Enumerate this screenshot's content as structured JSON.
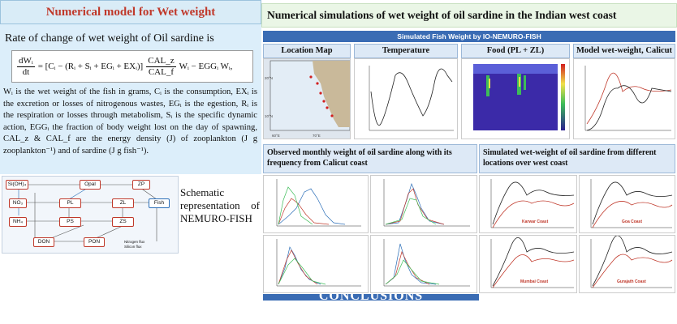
{
  "left": {
    "title": "Numerical model for Wet weight",
    "rate_text": "Rate of change of wet weight of Oil sardine is",
    "eq_lhs_num": "dWᵢ",
    "eq_lhs_den": "dt",
    "eq_mid": "= [Cᵢ − (Rᵢ + Sᵢ + EGᵢ + EXᵢ)]",
    "eq_frac_num": "CAL_z",
    "eq_frac_den": "CAL_f",
    "eq_tail": "Wᵢ − EGGᵢ Wᵢ,",
    "paragraph": "Wᵢ is the wet weight of the fish in grams, Cᵢ is the consumption, EXᵢ is the excretion or losses of nitrogenous wastes, EGᵢ is the egestion, Rᵢ is the respiration or losses through metabolism, Sᵢ is the specific dynamic action, EGGᵢ the fraction of body weight lost on the day of spawning, CAL_z & CAL_f are the energy density (J) of zooplankton (J g zooplankton⁻¹) and of sardine (J g fish⁻¹).",
    "schematic_text": "Schematic representation of NEMURO-FISH",
    "diagram_nodes": [
      "Si(OH)₄",
      "Opal",
      "ZP",
      "NO₃",
      "PL",
      "ZL",
      "Fish",
      "NH₄",
      "PS",
      "ZS",
      "DON",
      "PON"
    ],
    "diagram_legend": [
      "Nitrogen flux",
      "Silicon flux"
    ]
  },
  "right": {
    "title": "Numerical simulations of wet weight of oil sardine in the Indian west coast",
    "banner": "Simulated Fish Weight by IO-NEMURO-FISH",
    "panels": {
      "location": "Location Map",
      "temperature": "Temperature",
      "food": "Food (PL + ZL)",
      "model": "Model wet-weight, Calicut"
    },
    "map_labels": {
      "lat1": "20°N",
      "lat2": "10°N",
      "lon1": "60°E",
      "lon2": "70°E"
    },
    "observed_heading": "Observed monthly weight of oil sardine along with its frequency from Calicut coast",
    "simulated_heading": "Simulated wet-weight of oil sardine from different locations over west coast",
    "coasts": [
      "Karwar Coast",
      "Goa Coast",
      "Mumbai Coast",
      "Gurajath Coast"
    ],
    "conclusions": "CONCLUSIONS"
  },
  "colors": {
    "accent_red": "#c0392b",
    "banner_blue": "#3a6cb4",
    "head_bg": "#dde9f6"
  }
}
